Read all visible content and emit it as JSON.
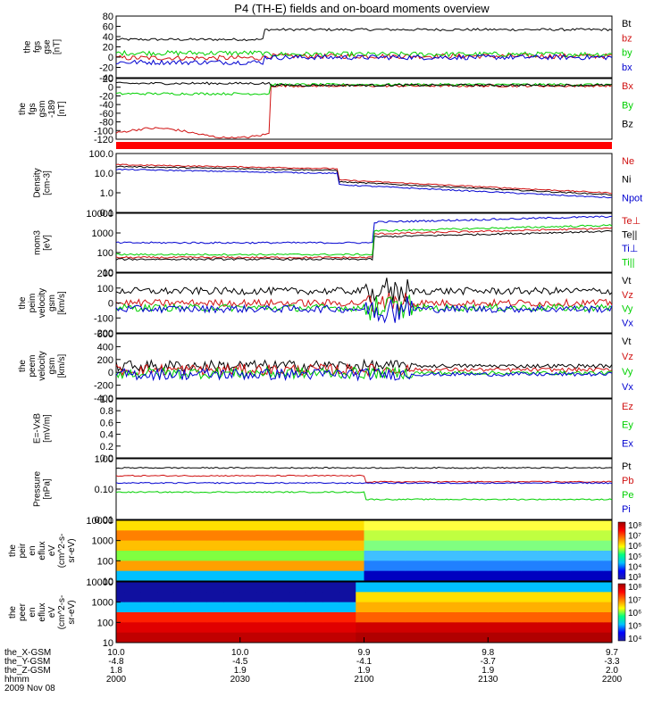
{
  "title": "P4 (TH-E) fields and on-board moments overview",
  "colors": {
    "black": "#000000",
    "red": "#d01010",
    "green": "#00d000",
    "blue": "#0000d0"
  },
  "panels": [
    {
      "id": "fgs-gse",
      "ylabel": [
        "the",
        "fgs",
        "gse",
        "[nT]"
      ],
      "yscale": "linear",
      "ylim": [
        -40,
        80
      ],
      "ticks": [
        "80",
        "60",
        "40",
        "20",
        "0",
        "-20",
        "-40"
      ],
      "series": [
        {
          "name": "Bt",
          "color": "#000000"
        },
        {
          "name": "bz",
          "color": "#d01010"
        },
        {
          "name": "by",
          "color": "#00d000"
        },
        {
          "name": "bx",
          "color": "#0000d0"
        }
      ]
    },
    {
      "id": "fgs-gsm",
      "ylabel": [
        "the",
        "fgs",
        "gsm",
        "-189",
        "[nT]"
      ],
      "yscale": "linear",
      "ylim": [
        -140,
        20
      ],
      "ticks": [
        "20",
        "0",
        "-20",
        "-40",
        "-60",
        "-80",
        "-100",
        "-120"
      ],
      "series": [
        {
          "name": "Bx",
          "color": "#d01010"
        },
        {
          "name": "By",
          "color": "#00d000"
        },
        {
          "name": "Bz",
          "color": "#000000"
        }
      ]
    },
    {
      "id": "density",
      "ylabel": [
        "Density",
        "[cm-3]"
      ],
      "yscale": "log",
      "ylim": [
        0.1,
        100
      ],
      "ticks": [
        "100.0",
        "10.0",
        "1.0",
        "0.1"
      ],
      "series": [
        {
          "name": "Ne",
          "color": "#d01010"
        },
        {
          "name": "Ni",
          "color": "#000000"
        },
        {
          "name": "Npot",
          "color": "#0000d0"
        }
      ]
    },
    {
      "id": "temperature",
      "ylabel": [
        "mom3",
        "[eV]"
      ],
      "yscale": "log",
      "ylim": [
        10,
        10000
      ],
      "ticks": [
        "10000",
        "1000",
        "100",
        "10"
      ],
      "series": [
        {
          "name": "Te⊥",
          "color": "#d01010"
        },
        {
          "name": "Te||",
          "color": "#000000"
        },
        {
          "name": "Ti⊥",
          "color": "#0000d0"
        },
        {
          "name": "Ti||",
          "color": "#00d000"
        }
      ]
    },
    {
      "id": "peim-velocity",
      "ylabel": [
        "the",
        "peim",
        "velocity",
        "gsm",
        "[km/s]"
      ],
      "yscale": "linear",
      "ylim": [
        -200,
        200
      ],
      "ticks": [
        "200",
        "100",
        "0",
        "-100",
        "-200"
      ],
      "series": [
        {
          "name": "Vt",
          "color": "#000000"
        },
        {
          "name": "Vz",
          "color": "#d01010"
        },
        {
          "name": "Vy",
          "color": "#00d000"
        },
        {
          "name": "Vx",
          "color": "#0000d0"
        }
      ]
    },
    {
      "id": "peem-velocity",
      "ylabel": [
        "the",
        "peem",
        "velocity",
        "gsm",
        "[km/s]"
      ],
      "yscale": "linear",
      "ylim": [
        -400,
        600
      ],
      "ticks": [
        "600",
        "400",
        "200",
        "0",
        "-200",
        "-400"
      ],
      "series": [
        {
          "name": "Vt",
          "color": "#000000"
        },
        {
          "name": "Vz",
          "color": "#d01010"
        },
        {
          "name": "Vy",
          "color": "#00d000"
        },
        {
          "name": "Vx",
          "color": "#0000d0"
        }
      ]
    },
    {
      "id": "e-field",
      "ylabel": [
        "E=-VxB",
        "[mV/m]"
      ],
      "yscale": "linear",
      "ylim": [
        0,
        1
      ],
      "ticks": [
        "1.0",
        "0.8",
        "0.6",
        "0.4",
        "0.2",
        "0.0"
      ],
      "series": [
        {
          "name": "Ez",
          "color": "#d01010"
        },
        {
          "name": "Ey",
          "color": "#00d000"
        },
        {
          "name": "Ex",
          "color": "#0000d0"
        }
      ]
    },
    {
      "id": "pressure",
      "ylabel": [
        "Pressure",
        "[nPa]"
      ],
      "yscale": "log",
      "ylim": [
        0.01,
        3
      ],
      "ticks": [
        "1.00",
        "0.10",
        "0.01"
      ],
      "series": [
        {
          "name": "Pt",
          "color": "#000000"
        },
        {
          "name": "Pb",
          "color": "#d01010"
        },
        {
          "name": "Pe",
          "color": "#00d000"
        },
        {
          "name": "Pi",
          "color": "#0000d0"
        }
      ]
    },
    {
      "id": "peir-eflux",
      "ylabel": [
        "the",
        "peir",
        "en",
        "eflux",
        "eV",
        "(cm^2-s-",
        "sr-eV)"
      ],
      "yscale": "log",
      "ylim": [
        10,
        20000
      ],
      "ticks": [
        "10000",
        "1000",
        "100",
        "10"
      ],
      "colorbar_ticks": [
        "10⁸",
        "10⁷",
        "10⁶",
        "10⁵",
        "10⁴",
        "10³"
      ]
    },
    {
      "id": "peer-eflux",
      "ylabel": [
        "the",
        "peer",
        "en",
        "eflux",
        "eV",
        "(cm^2-s-",
        "sr-eV)"
      ],
      "yscale": "log",
      "ylim": [
        10,
        20000
      ],
      "ticks": [
        "10000",
        "1000",
        "100",
        "10"
      ],
      "colorbar_ticks": [
        "10⁸",
        "10⁷",
        "10⁶",
        "10⁵",
        "10⁴"
      ]
    }
  ],
  "xaxis": {
    "row_labels": [
      "the_X-GSM",
      "the_Y-GSM",
      "the_Z-GSM",
      "hhmm"
    ],
    "ticks": [
      {
        "x": "10.0",
        "y": "-4.8",
        "z": "1.8",
        "hhmm": "2000"
      },
      {
        "x": "10.0",
        "y": "-4.5",
        "z": "1.9",
        "hhmm": "2030"
      },
      {
        "x": "9.9",
        "y": "-4.1",
        "z": "1.9",
        "hhmm": "2100"
      },
      {
        "x": "9.8",
        "y": "-3.7",
        "z": "1.9",
        "hhmm": "2130"
      },
      {
        "x": "9.7",
        "y": "-3.3",
        "z": "2.0",
        "hhmm": "2200"
      }
    ],
    "date": "2009 Nov 08"
  }
}
